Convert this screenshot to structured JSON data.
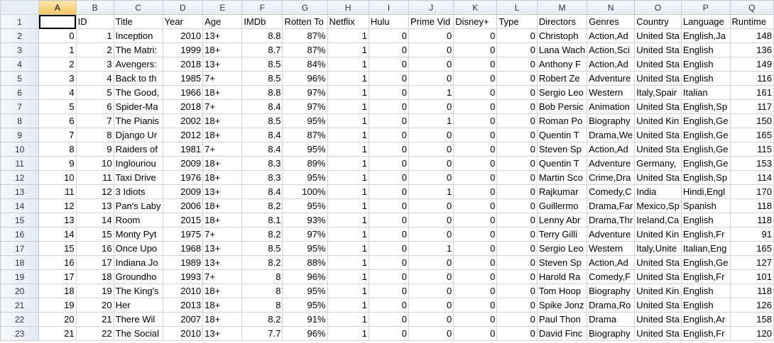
{
  "sheet": {
    "column_letters": [
      "A",
      "B",
      "C",
      "D",
      "E",
      "F",
      "G",
      "H",
      "I",
      "J",
      "K",
      "L",
      "M",
      "N",
      "O",
      "P",
      "Q"
    ],
    "selected_column": "A",
    "header_row": [
      "",
      "ID",
      "Title",
      "Year",
      "Age",
      "IMDb",
      "Rotten To",
      "Netflix",
      "Hulu",
      "Prime Vid",
      "Disney+",
      "Type",
      "Directors",
      "Genres",
      "Country",
      "Language",
      "Runtime"
    ],
    "rows": [
      [
        "0",
        "1",
        "Inception",
        "2010",
        "13+",
        "8.8",
        "87%",
        "1",
        "0",
        "0",
        "0",
        "0",
        "Christoph",
        "Action,Ad",
        "United Sta",
        "English,Ja",
        "148"
      ],
      [
        "1",
        "2",
        "The Matri:",
        "1999",
        "18+",
        "8.7",
        "87%",
        "1",
        "0",
        "0",
        "0",
        "0",
        "Lana Wach",
        "Action,Sci",
        "United Sta",
        "English",
        "136"
      ],
      [
        "2",
        "3",
        "Avengers:",
        "2018",
        "13+",
        "8.5",
        "84%",
        "1",
        "0",
        "0",
        "0",
        "0",
        "Anthony F",
        "Action,Ad",
        "United Sta",
        "English",
        "149"
      ],
      [
        "3",
        "4",
        "Back to th",
        "1985",
        "7+",
        "8.5",
        "96%",
        "1",
        "0",
        "0",
        "0",
        "0",
        "Robert Ze",
        "Adventure",
        "United Sta",
        "English",
        "116"
      ],
      [
        "4",
        "5",
        "The Good,",
        "1966",
        "18+",
        "8.8",
        "97%",
        "1",
        "0",
        "1",
        "0",
        "0",
        "Sergio Leo",
        "Western",
        "Italy,Spair",
        "Italian",
        "161"
      ],
      [
        "5",
        "6",
        "Spider-Ma",
        "2018",
        "7+",
        "8.4",
        "97%",
        "1",
        "0",
        "0",
        "0",
        "0",
        "Bob Persic",
        "Animation",
        "United Sta",
        "English,Sp",
        "117"
      ],
      [
        "6",
        "7",
        "The Pianis",
        "2002",
        "18+",
        "8.5",
        "95%",
        "1",
        "0",
        "1",
        "0",
        "0",
        "Roman Po",
        "Biography",
        "United Kin",
        "English,Ge",
        "150"
      ],
      [
        "7",
        "8",
        "Django Ur",
        "2012",
        "18+",
        "8.4",
        "87%",
        "1",
        "0",
        "0",
        "0",
        "0",
        "Quentin T",
        "Drama,We",
        "United Sta",
        "English,Ge",
        "165"
      ],
      [
        "8",
        "9",
        "Raiders of",
        "1981",
        "7+",
        "8.4",
        "95%",
        "1",
        "0",
        "0",
        "0",
        "0",
        "Steven Sp",
        "Action,Ad",
        "United Sta",
        "English,Ge",
        "115"
      ],
      [
        "9",
        "10",
        "Inglouriou",
        "2009",
        "18+",
        "8.3",
        "89%",
        "1",
        "0",
        "0",
        "0",
        "0",
        "Quentin T",
        "Adventure",
        "Germany,",
        "English,Ge",
        "153"
      ],
      [
        "10",
        "11",
        "Taxi Drive",
        "1976",
        "18+",
        "8.3",
        "95%",
        "1",
        "0",
        "0",
        "0",
        "0",
        "Martin Sco",
        "Crime,Dra",
        "United Sta",
        "English,Sp",
        "114"
      ],
      [
        "11",
        "12",
        "3 Idiots",
        "2009",
        "13+",
        "8.4",
        "100%",
        "1",
        "0",
        "1",
        "0",
        "0",
        "Rajkumar",
        "Comedy,C",
        "India",
        "Hindi,Engl",
        "170"
      ],
      [
        "12",
        "13",
        "Pan's Laby",
        "2006",
        "18+",
        "8.2",
        "95%",
        "1",
        "0",
        "0",
        "0",
        "0",
        "Guillermo",
        "Drama,Far",
        "Mexico,Sp",
        "Spanish",
        "118"
      ],
      [
        "13",
        "14",
        "Room",
        "2015",
        "18+",
        "8.1",
        "93%",
        "1",
        "0",
        "0",
        "0",
        "0",
        "Lenny Abr",
        "Drama,Thr",
        "Ireland,Ca",
        "English",
        "118"
      ],
      [
        "14",
        "15",
        "Monty Pyt",
        "1975",
        "7+",
        "8.2",
        "97%",
        "1",
        "0",
        "0",
        "0",
        "0",
        "Terry Gilli",
        "Adventure",
        "United Kin",
        "English,Fr",
        "91"
      ],
      [
        "15",
        "16",
        "Once Upo",
        "1968",
        "13+",
        "8.5",
        "95%",
        "1",
        "0",
        "1",
        "0",
        "0",
        "Sergio Leo",
        "Western",
        "Italy,Unite",
        "Italian,Eng",
        "165"
      ],
      [
        "16",
        "17",
        "Indiana Jo",
        "1989",
        "13+",
        "8.2",
        "88%",
        "1",
        "0",
        "0",
        "0",
        "0",
        "Steven Sp",
        "Action,Ad",
        "United Sta",
        "English,Ge",
        "127"
      ],
      [
        "17",
        "18",
        "Groundho",
        "1993",
        "7+",
        "8",
        "96%",
        "1",
        "0",
        "0",
        "0",
        "0",
        "Harold Ra",
        "Comedy,F",
        "United Sta",
        "English,Fr",
        "101"
      ],
      [
        "18",
        "19",
        "The King's",
        "2010",
        "18+",
        "8",
        "95%",
        "1",
        "0",
        "0",
        "0",
        "0",
        "Tom Hoop",
        "Biography",
        "United Kin",
        "English",
        "118"
      ],
      [
        "19",
        "20",
        "Her",
        "2013",
        "18+",
        "8",
        "95%",
        "1",
        "0",
        "0",
        "0",
        "0",
        "Spike Jonz",
        "Drama,Ro",
        "United Sta",
        "English",
        "126"
      ],
      [
        "20",
        "21",
        "There Wil",
        "2007",
        "18+",
        "8.2",
        "91%",
        "1",
        "0",
        "0",
        "0",
        "0",
        "Paul Thon",
        "Drama",
        "United Sta",
        "English,Ar",
        "158"
      ],
      [
        "21",
        "22",
        "The Social",
        "2010",
        "13+",
        "7.7",
        "96%",
        "1",
        "0",
        "0",
        "0",
        "0",
        "David Finc",
        "Biography",
        "United Sta",
        "English,Fr",
        "120"
      ]
    ]
  }
}
